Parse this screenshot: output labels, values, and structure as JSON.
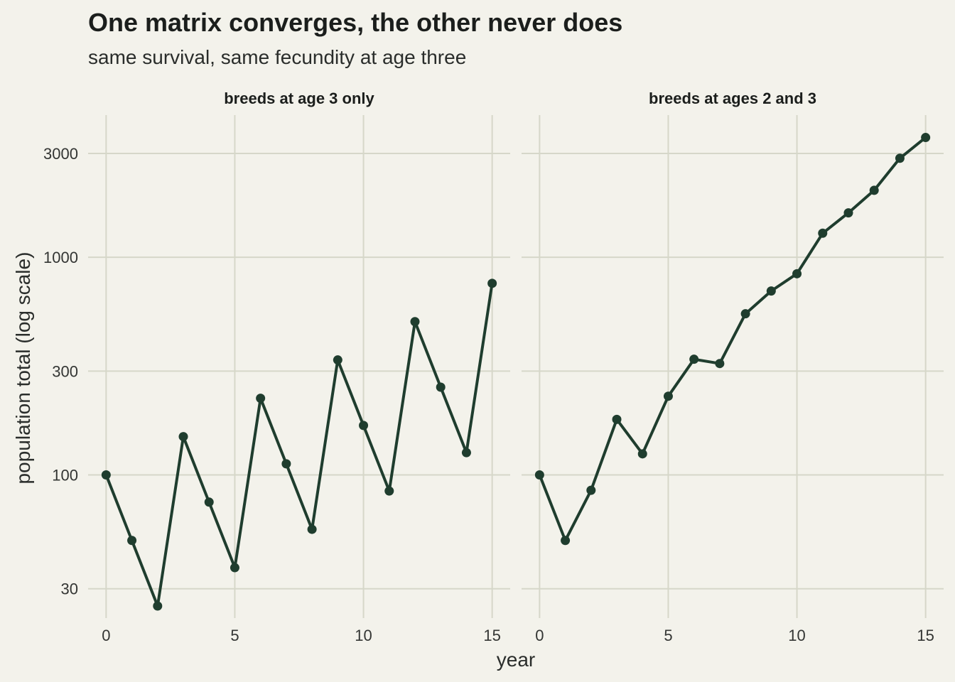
{
  "chart_data": {
    "type": "line",
    "title": "One matrix converges, the other never does",
    "subtitle": "same survival, same fecundity at age three",
    "xlabel": "year",
    "ylabel": "population total (log scale)",
    "y_scale": "log10",
    "ylim": [
      22,
      4500
    ],
    "xlim": [
      -0.7,
      15.7
    ],
    "x_ticks": [
      0,
      5,
      10,
      15
    ],
    "y_ticks": [
      30,
      100,
      300,
      1000,
      3000
    ],
    "grid": true,
    "line_color": "#1f3d2e",
    "background": "#f3f2eb",
    "gridline_color": "#d6d7c9",
    "panels": [
      {
        "label": "breeds at age 3 only",
        "x": [
          0,
          1,
          2,
          3,
          4,
          5,
          6,
          7,
          8,
          9,
          10,
          11,
          12,
          13,
          14,
          15
        ],
        "values": [
          100,
          50,
          25,
          150,
          75,
          37.5,
          225,
          112.5,
          56.25,
          337.5,
          168.75,
          84.4,
          506,
          253,
          126.6,
          759
        ]
      },
      {
        "label": "breeds at ages 2 and 3",
        "x": [
          0,
          1,
          2,
          3,
          4,
          5,
          6,
          7,
          8,
          9,
          10,
          11,
          12,
          13,
          14,
          15
        ],
        "values": [
          100,
          50,
          85,
          180,
          125,
          230,
          340,
          325,
          550,
          700,
          840,
          1290,
          1600,
          2030,
          2850,
          3550
        ]
      }
    ]
  }
}
